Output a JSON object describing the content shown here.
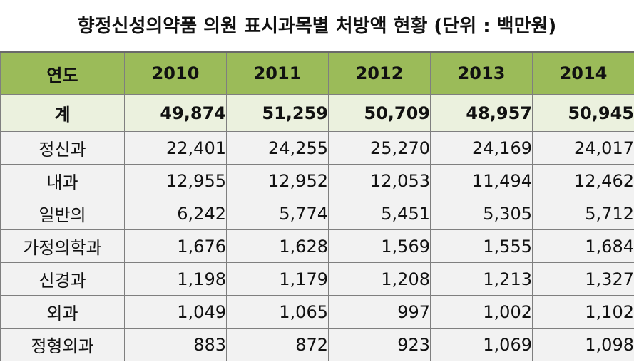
{
  "title": "향정신성의약품 의원 표시과목별 처방액 현황 (단위 : 백만원)",
  "table": {
    "header": [
      "연도",
      "2010",
      "2011",
      "2012",
      "2013",
      "2014"
    ],
    "total": {
      "label": "계",
      "values": [
        "49,874",
        "51,259",
        "50,709",
        "48,957",
        "50,945"
      ]
    },
    "rows": [
      {
        "label": "정신과",
        "values": [
          "22,401",
          "24,255",
          "25,270",
          "24,169",
          "24,017"
        ]
      },
      {
        "label": "내과",
        "values": [
          "12,955",
          "12,952",
          "12,053",
          "11,494",
          "12,462"
        ]
      },
      {
        "label": "일반의",
        "values": [
          "6,242",
          "5,774",
          "5,451",
          "5,305",
          "5,712"
        ]
      },
      {
        "label": "가정의학과",
        "values": [
          "1,676",
          "1,628",
          "1,569",
          "1,555",
          "1,684"
        ]
      },
      {
        "label": "신경과",
        "values": [
          "1,198",
          "1,179",
          "1,208",
          "1,213",
          "1,327"
        ]
      },
      {
        "label": "외과",
        "values": [
          "1,049",
          "1,065",
          "997",
          "1,002",
          "1,102"
        ]
      },
      {
        "label": "정형외과",
        "values": [
          "883",
          "872",
          "923",
          "1,069",
          "1,098"
        ]
      }
    ]
  },
  "colors": {
    "header_bg": "#9bbb59",
    "total_bg": "#ebf1de",
    "row_bg": "#f2f2f2",
    "border": "#7f7f7f"
  }
}
